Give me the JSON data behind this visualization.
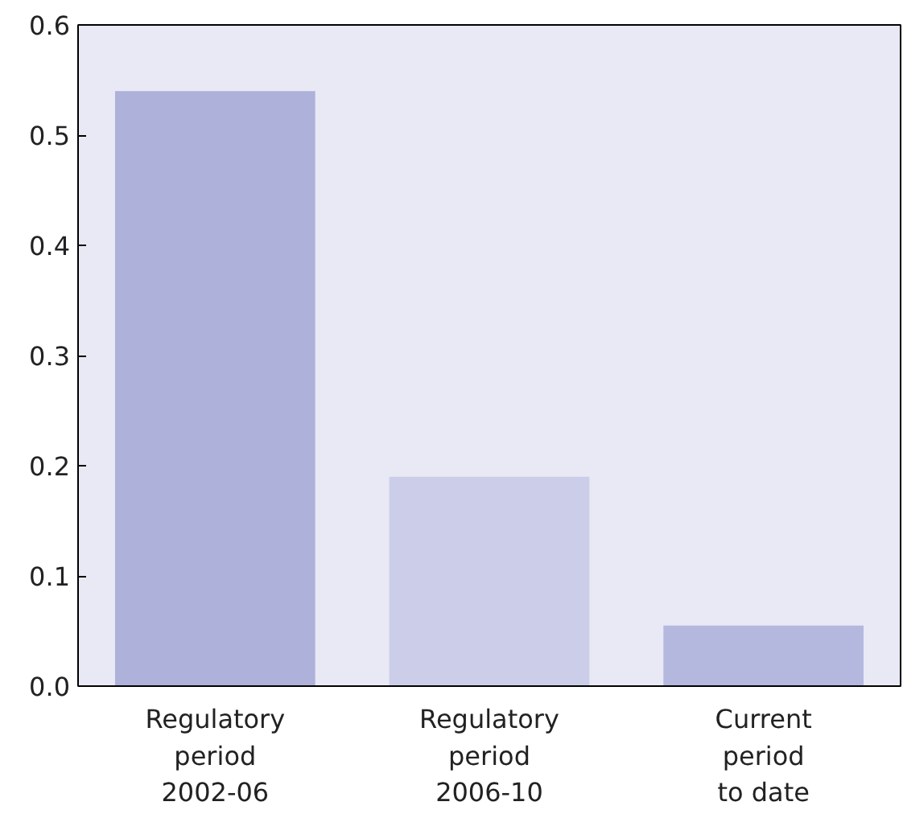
{
  "chart_data": {
    "type": "bar",
    "categories": [
      "Regulatory\nperiod\n2002-06",
      "Regulatory\nperiod\n2006-10",
      "Current\nperiod\nto date"
    ],
    "values": [
      0.54,
      0.19,
      0.055
    ],
    "colors": [
      "#aeb1da",
      "#cbcde9",
      "#b5b8de"
    ],
    "ylim": [
      0,
      0.6
    ],
    "yticks": [
      {
        "value": 0,
        "label": "0.0"
      },
      {
        "value": 0.1,
        "label": "0.1"
      },
      {
        "value": 0.2,
        "label": "0.2"
      },
      {
        "value": 0.3,
        "label": "0.3"
      },
      {
        "value": 0.4,
        "label": "0.4"
      },
      {
        "value": 0.5,
        "label": "0.5"
      },
      {
        "value": 0.6,
        "label": "0.6"
      }
    ],
    "grid": false
  }
}
